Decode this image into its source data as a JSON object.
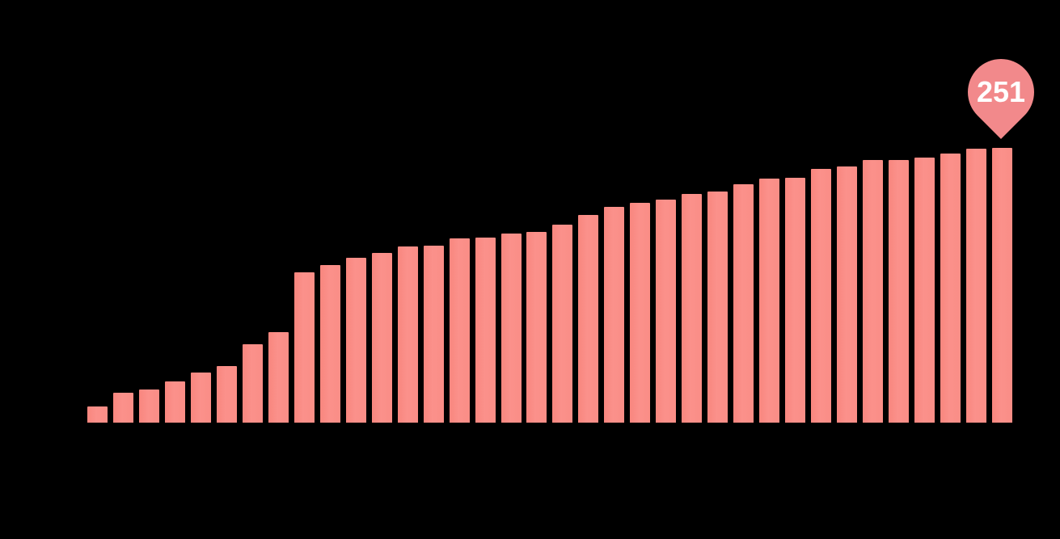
{
  "chart_data": {
    "type": "bar",
    "title": "",
    "xlabel": "",
    "ylabel": "",
    "axes_labels_visible": false,
    "grid": false,
    "legend": false,
    "ylim": [
      0,
      251
    ],
    "values": [
      15,
      27,
      30,
      38,
      46,
      52,
      72,
      83,
      137,
      144,
      151,
      155,
      161,
      162,
      168,
      169,
      173,
      174,
      181,
      190,
      197,
      201,
      204,
      209,
      211,
      218,
      223,
      224,
      232,
      234,
      240,
      240,
      242,
      246,
      250,
      251
    ],
    "annotation": {
      "label": "251",
      "bar_index": 35,
      "shape": "map-pin"
    },
    "colors": {
      "background": "#000000",
      "bar": "#FA8D86",
      "callout_fill": "#F2898B",
      "callout_text": "#FFFFFF"
    }
  }
}
